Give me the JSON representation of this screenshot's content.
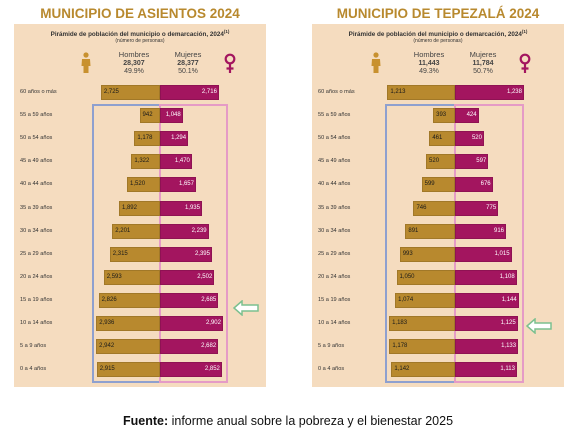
{
  "source": {
    "label": "Fuente:",
    "text": "informe anual sobre la pobreza y el bienestar 2025"
  },
  "colors": {
    "men": "#b8892e",
    "women": "#a3155f",
    "panel_bg": "#f5dcbf",
    "men_outline": "#8ea0cf",
    "women_outline": "#e59bc6",
    "arrow": "#7cc08f",
    "title": "#b8892e"
  },
  "icons": {
    "men": "male-person-icon",
    "women": "female-symbol-icon",
    "highlight": "left-arrow-icon"
  },
  "chart_data": [
    {
      "type": "bar",
      "orientation": "horizontal-population-pyramid",
      "title": "MUNICIPIO DE ASIENTOS 2024",
      "subtitle": "Pirámide de población del municipio o demarcación, 2024",
      "subtitle_note": "(1)",
      "units": "(número de personas)",
      "men": {
        "label": "Hombres",
        "total": "28,307",
        "pct": "49.9%"
      },
      "women": {
        "label": "Mujeres",
        "total": "28,377",
        "pct": "50.1%"
      },
      "categories": [
        "60 años o más",
        "55 a 59 años",
        "50 a 54 años",
        "45 a 49 años",
        "40 a 44 años",
        "35 a 39 años",
        "30 a 34 años",
        "25 a 29 años",
        "20 a 24 años",
        "15 a 19 años",
        "10 a 14 años",
        "5 a 9 años",
        "0 a 4 años"
      ],
      "series": [
        {
          "name": "Hombres",
          "values": [
            2725,
            942,
            1178,
            1322,
            1520,
            1892,
            2201,
            2315,
            2593,
            2826,
            2936,
            2942,
            2915
          ]
        },
        {
          "name": "Mujeres",
          "values": [
            2716,
            1048,
            1294,
            1470,
            1657,
            1935,
            2239,
            2395,
            2502,
            2685,
            2902,
            2682,
            2852
          ]
        }
      ],
      "labels_men": [
        "2,725",
        "942",
        "1,178",
        "1,322",
        "1,520",
        "1,892",
        "2,201",
        "2,315",
        "2,593",
        "2,826",
        "2,936",
        "2,942",
        "2,915"
      ],
      "labels_women": [
        "2,716",
        "1,048",
        "1,294",
        "1,470",
        "1,657",
        "1,935",
        "2,239",
        "2,395",
        "2,502",
        "2,685",
        "2,902",
        "2,682",
        "2,852"
      ],
      "highlight_category": "15 a 19 años"
    },
    {
      "type": "bar",
      "orientation": "horizontal-population-pyramid",
      "title": "MUNICIPIO DE TEPEZALÁ 2024",
      "subtitle": "Pirámide de población del municipio o demarcación, 2024",
      "subtitle_note": "(1)",
      "units": "(número de personas)",
      "men": {
        "label": "Hombres",
        "total": "11,443",
        "pct": "49.3%"
      },
      "women": {
        "label": "Mujeres",
        "total": "11,784",
        "pct": "50.7%"
      },
      "categories": [
        "60 años o más",
        "55 a 59 años",
        "50 a 54 años",
        "45 a 49 años",
        "40 a 44 años",
        "35 a 39 años",
        "30 a 34 años",
        "25 a 29 años",
        "20 a 24 años",
        "15 a 19 años",
        "10 a 14 años",
        "5 a 9 años",
        "0 a 4 años"
      ],
      "series": [
        {
          "name": "Hombres",
          "values": [
            1213,
            393,
            461,
            520,
            599,
            746,
            891,
            993,
            1050,
            1074,
            1183,
            1178,
            1142
          ]
        },
        {
          "name": "Mujeres",
          "values": [
            1238,
            424,
            520,
            597,
            676,
            775,
            916,
            1015,
            1108,
            1144,
            1125,
            1133,
            1113
          ]
        }
      ],
      "labels_men": [
        "1,213",
        "393",
        "461",
        "520",
        "599",
        "746",
        "891",
        "993",
        "1,050",
        "1,074",
        "1,183",
        "1,178",
        "1,142"
      ],
      "labels_women": [
        "1,238",
        "424",
        "520",
        "597",
        "676",
        "775",
        "916",
        "1,015",
        "1,108",
        "1,144",
        "1,125",
        "1,133",
        "1,113"
      ],
      "highlight_category": "10 a 14 años"
    }
  ]
}
